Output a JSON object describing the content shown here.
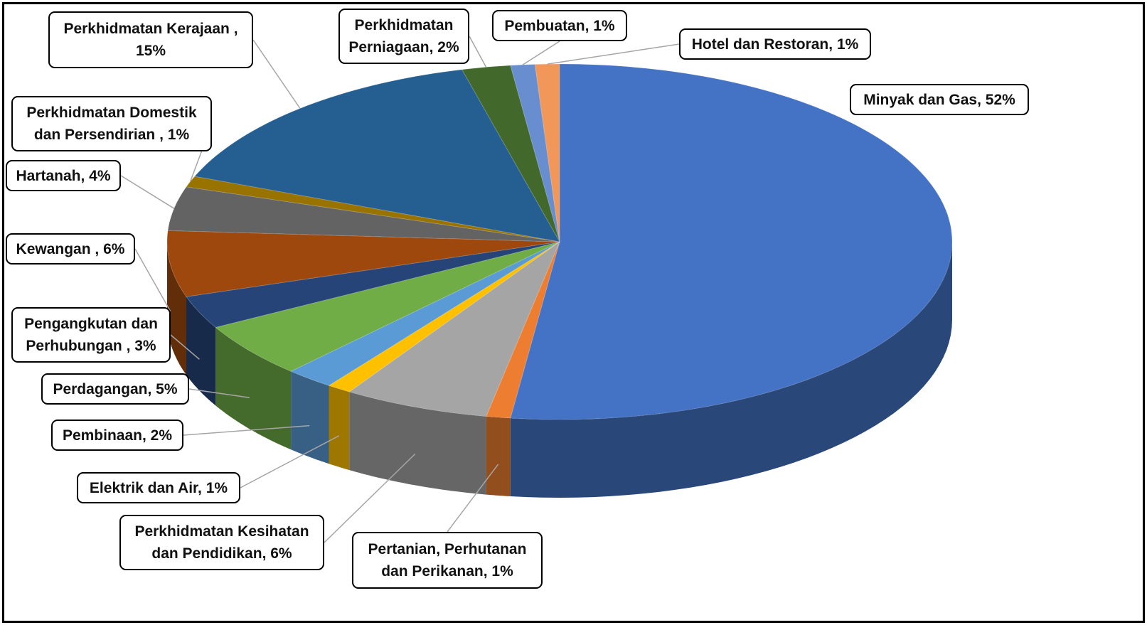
{
  "chart_data": {
    "type": "pie3d",
    "categories": [
      "Minyak dan Gas",
      "Pertanian, Perhutanan dan Perikanan",
      "Perkhidmatan Kesihatan dan Pendidikan",
      "Elektrik dan Air",
      "Pembinaan",
      "Perdagangan",
      "Pengangkutan dan Perhubungan",
      "Kewangan",
      "Hartanah",
      "Perkhidmatan Domestik dan Persendirian",
      "Perkhidmatan Kerajaan",
      "Perkhidmatan Perniagaan",
      "Pembuatan",
      "Hotel dan Restoran"
    ],
    "values": [
      52,
      1,
      6,
      1,
      2,
      5,
      3,
      6,
      4,
      1,
      15,
      2,
      1,
      1
    ],
    "value_labels": [
      ", 52%",
      ", 1%",
      ", 6%",
      ", 1%",
      ", 2%",
      ", 5%",
      " , 3%",
      " , 6%",
      ", 4%",
      " , 1%",
      " , 15%",
      ", 2%",
      ", 1%",
      ", 1%"
    ],
    "colors": [
      "#4472c4",
      "#ed7d31",
      "#a5a5a5",
      "#ffc000",
      "#5b9bd5",
      "#70ad47",
      "#264478",
      "#9e480e",
      "#636363",
      "#997300",
      "#255e91",
      "#43682b",
      "#698ed0",
      "#f1975a"
    ]
  }
}
